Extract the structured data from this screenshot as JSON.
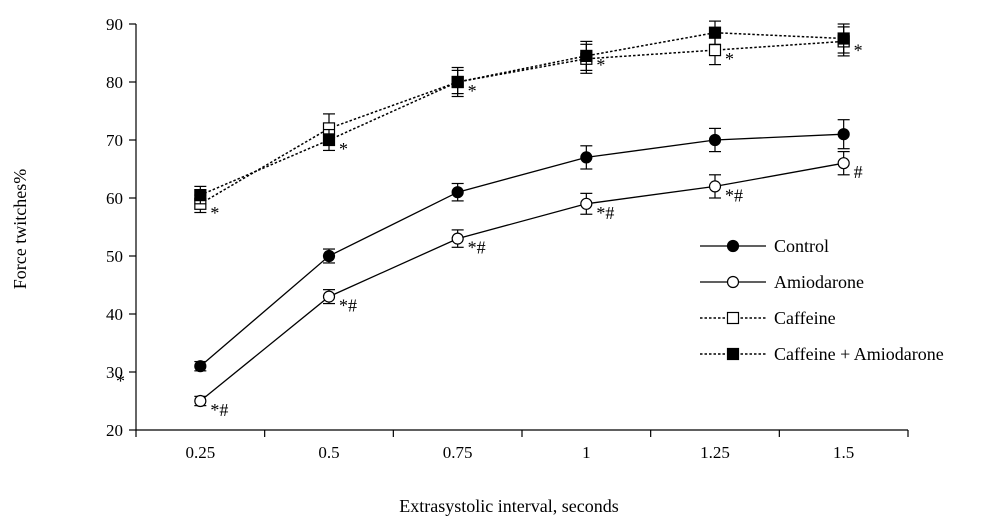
{
  "chart_data": {
    "type": "line",
    "title": "",
    "xlabel": "Extrasystolic interval, seconds",
    "ylabel": "Force twitches%",
    "x": [
      0.25,
      0.5,
      0.75,
      1,
      1.25,
      1.5
    ],
    "x_tick_labels": [
      "0.25",
      "0.5",
      "0.75",
      "1",
      "1.25",
      "1.5"
    ],
    "ylim": [
      20,
      90
    ],
    "y_ticks": [
      20,
      30,
      40,
      50,
      60,
      70,
      80,
      90
    ],
    "grid": false,
    "legend_position": "right",
    "series": [
      {
        "name": "Control",
        "marker": "filled-circle",
        "line": "solid",
        "values": [
          31,
          50,
          61,
          67,
          70,
          71
        ],
        "errors": [
          0.8,
          1.2,
          1.5,
          2.0,
          2.0,
          2.5
        ],
        "annotations": [
          "",
          "",
          "",
          "",
          "",
          ""
        ]
      },
      {
        "name": "Amiodarone",
        "marker": "open-circle",
        "line": "solid",
        "values": [
          25,
          43,
          53,
          59,
          62,
          66
        ],
        "errors": [
          0.8,
          1.2,
          1.5,
          1.8,
          2.0,
          2.0
        ],
        "annotations": [
          "*#",
          "*#",
          "*#",
          "*#",
          "*#",
          "#"
        ]
      },
      {
        "name": "Caffeine",
        "marker": "open-square",
        "line": "dotted",
        "values": [
          59,
          72,
          80,
          84,
          85.5,
          87
        ],
        "errors": [
          1.5,
          2.5,
          2.5,
          2.5,
          2.5,
          2.5
        ],
        "annotations": [
          "*",
          "",
          "",
          "",
          "*",
          "*"
        ]
      },
      {
        "name": "Caffeine + Amiodarone",
        "marker": "filled-square",
        "line": "dotted",
        "values": [
          60.5,
          70,
          80,
          84.5,
          88.5,
          87.5
        ],
        "errors": [
          1.5,
          1.8,
          2.0,
          2.5,
          2.0,
          2.5
        ],
        "annotations": [
          "",
          "*",
          "*",
          "*",
          "",
          ""
        ]
      }
    ],
    "extra_annotations": [
      {
        "text": "*",
        "x": 0.25,
        "y": 29.5,
        "anchor": "left-of-axis"
      }
    ]
  }
}
